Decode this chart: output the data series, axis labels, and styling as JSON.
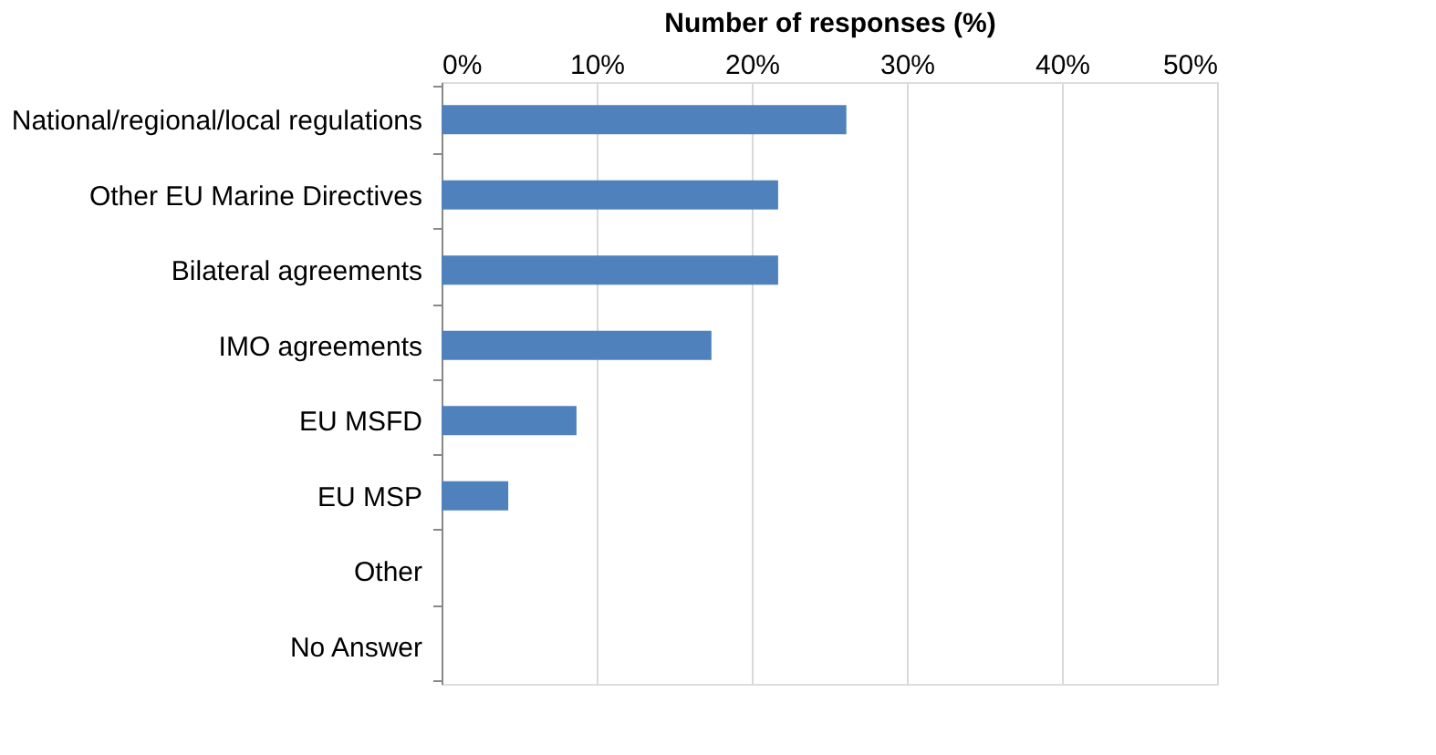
{
  "chart_data": {
    "type": "bar",
    "orientation": "horizontal",
    "xlabel": "Number of responses (%)",
    "categories": [
      "National/regional/local regulations",
      "Other EU Marine Directives",
      "Bilateral agreements ",
      "IMO agreements",
      "EU MSFD",
      "EU MSP",
      "Other",
      "No Answer"
    ],
    "values": [
      26.1,
      21.7,
      21.7,
      17.4,
      8.7,
      4.3,
      0,
      0
    ],
    "color": "#4f81bd",
    "xlim": [
      0,
      50
    ],
    "xticks": [
      {
        "value": 0,
        "label": "0%"
      },
      {
        "value": 10,
        "label": "10%"
      },
      {
        "value": 20,
        "label": "20%"
      },
      {
        "value": 30,
        "label": "30%"
      },
      {
        "value": 40,
        "label": "40%"
      },
      {
        "value": 50,
        "label": "50%"
      }
    ],
    "grid": "x"
  }
}
